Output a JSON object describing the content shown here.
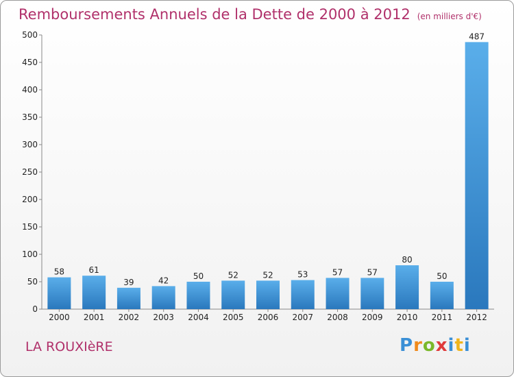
{
  "header": {
    "title": "Remboursements Annuels de la Dette de 2000 à 2012",
    "subtitle": "(en milliers d'€)"
  },
  "footer": {
    "place": "LA ROUXIèRE",
    "logo_letters": [
      "P",
      "r",
      "o",
      "x",
      "i",
      "t",
      "i"
    ],
    "logo_colors": [
      "#3a8fd6",
      "#f08a1c",
      "#7ab82a",
      "#e03b3b",
      "#3a8fd6",
      "#f0b41c",
      "#3a8fd6"
    ]
  },
  "chart_data": {
    "type": "bar",
    "title": "Remboursements Annuels de la Dette de 2000 à 2012",
    "subtitle": "(en milliers d'€)",
    "categories": [
      "2000",
      "2001",
      "2002",
      "2003",
      "2004",
      "2005",
      "2006",
      "2007",
      "2008",
      "2009",
      "2010",
      "2011",
      "2012"
    ],
    "values": [
      58,
      61,
      39,
      42,
      50,
      52,
      52,
      53,
      57,
      57,
      80,
      50,
      487
    ],
    "ylim": [
      0,
      500
    ],
    "yticks": [
      0,
      50,
      100,
      150,
      200,
      250,
      300,
      350,
      400,
      450,
      500
    ],
    "grid": false,
    "legend": "none",
    "colors": {
      "bar_light": "#5aaeea",
      "bar_dark": "#2a78bd",
      "text": "#b0306a",
      "axis": "#888888"
    }
  }
}
